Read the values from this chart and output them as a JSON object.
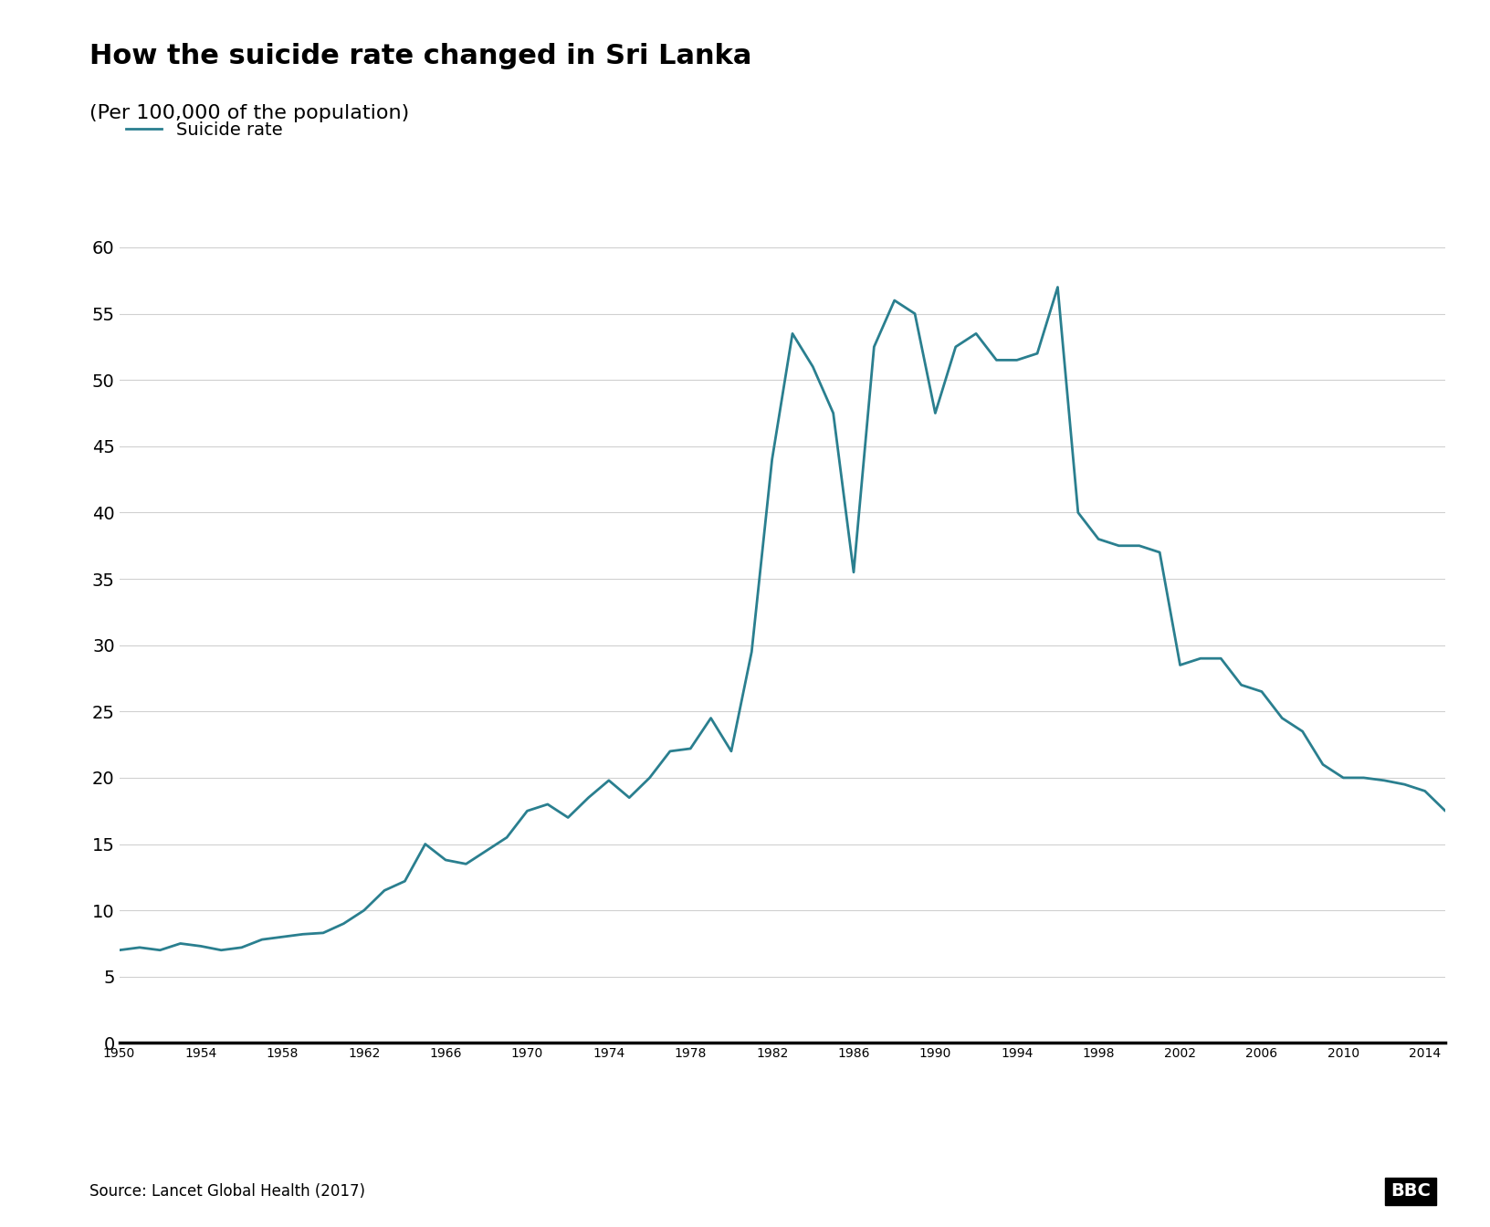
{
  "title": "How the suicide rate changed in Sri Lanka",
  "subtitle": "(Per 100,000 of the population)",
  "legend_label": "Suicide rate",
  "line_color": "#2a7f8f",
  "background_color": "#ffffff",
  "source_text": "Source: Lancet Global Health (2017)",
  "bbc_text": "BBC",
  "years": [
    1950,
    1951,
    1952,
    1953,
    1954,
    1955,
    1956,
    1957,
    1958,
    1959,
    1960,
    1961,
    1962,
    1963,
    1964,
    1965,
    1966,
    1967,
    1968,
    1969,
    1970,
    1971,
    1972,
    1973,
    1974,
    1975,
    1976,
    1977,
    1978,
    1979,
    1980,
    1981,
    1982,
    1983,
    1984,
    1985,
    1986,
    1987,
    1988,
    1989,
    1990,
    1991,
    1992,
    1993,
    1994,
    1995,
    1996,
    1997,
    1998,
    1999,
    2000,
    2001,
    2002,
    2003,
    2004,
    2005,
    2006,
    2007,
    2008,
    2009,
    2010,
    2011,
    2012,
    2013,
    2014,
    2015
  ],
  "values": [
    7.0,
    7.2,
    7.0,
    7.5,
    7.3,
    7.0,
    7.2,
    7.8,
    8.0,
    8.2,
    8.3,
    9.0,
    10.0,
    11.5,
    12.2,
    15.0,
    13.8,
    13.5,
    14.5,
    15.5,
    17.5,
    18.0,
    17.0,
    18.5,
    19.8,
    18.5,
    20.0,
    22.0,
    22.2,
    24.5,
    22.0,
    29.5,
    44.0,
    53.5,
    51.0,
    47.5,
    35.5,
    52.5,
    56.0,
    55.0,
    47.5,
    52.5,
    53.5,
    51.5,
    51.5,
    52.0,
    57.0,
    40.0,
    38.0,
    37.5,
    37.5,
    37.0,
    28.5,
    29.0,
    29.0,
    27.0,
    26.5,
    24.5,
    23.5,
    21.0,
    20.0,
    20.0,
    19.8,
    19.5,
    19.0,
    17.5
  ],
  "xlim": [
    1950,
    2015
  ],
  "ylim": [
    0,
    62
  ],
  "yticks": [
    0,
    5,
    10,
    15,
    20,
    25,
    30,
    35,
    40,
    45,
    50,
    55,
    60
  ],
  "xticks": [
    1950,
    1954,
    1958,
    1962,
    1966,
    1970,
    1974,
    1978,
    1982,
    1986,
    1990,
    1994,
    1998,
    2002,
    2006,
    2010,
    2014
  ],
  "title_fontsize": 22,
  "subtitle_fontsize": 16,
  "tick_fontsize": 14,
  "legend_fontsize": 14,
  "source_fontsize": 12,
  "bbc_fontsize": 14,
  "line_width": 2.0
}
